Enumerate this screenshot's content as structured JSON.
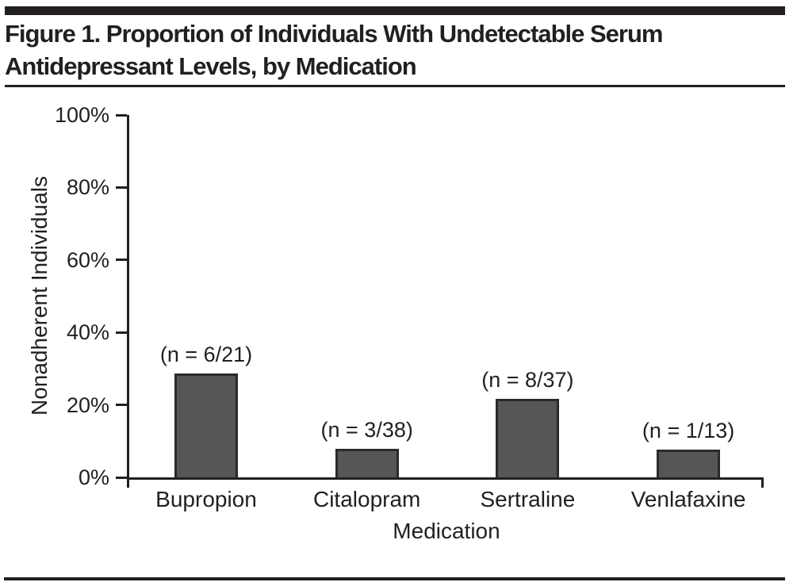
{
  "header": {
    "title_line1": "Figure 1. Proportion of Individuals With Undetectable Serum",
    "title_line2": "Antidepressant Levels, by Medication"
  },
  "chart_data": {
    "type": "bar",
    "title": "Figure 1. Proportion of Individuals With Undetectable Serum Antidepressant Levels, by Medication",
    "categories": [
      "Bupropion",
      "Citalopram",
      "Sertraline",
      "Venlafaxine"
    ],
    "values": [
      28.6,
      7.9,
      21.6,
      7.7
    ],
    "bar_labels": [
      "(n = 6/21)",
      "(n = 3/38)",
      "(n = 8/37)",
      "(n = 1/13)"
    ],
    "xlabel": "Medication",
    "ylabel": "Nonadherent Individuals",
    "ylim": [
      0,
      100
    ],
    "yticks": [
      0,
      20,
      40,
      60,
      80,
      100
    ],
    "ytick_labels": [
      "0%",
      "20%",
      "40%",
      "60%",
      "80%",
      "100%"
    ],
    "grid": false,
    "legend": "none",
    "bar_color": "#565658",
    "bar_border_color": "#2a2a2c",
    "axis_color": "#231f20",
    "text_color": "#231f20"
  }
}
